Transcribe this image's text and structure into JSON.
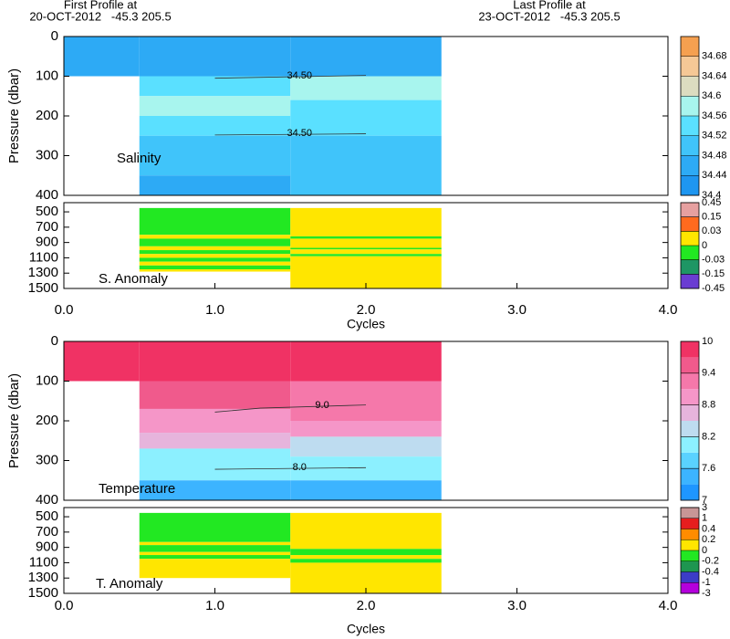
{
  "header": {
    "first_label": "First Profile at",
    "first_info": "20-OCT-2012   -45.3 205.5",
    "last_label": "Last Profile at",
    "last_info": "23-OCT-2012   -45.3 205.5"
  },
  "chart_data": [
    {
      "type": "heatmap",
      "label": "Salinity",
      "ylabel": "Pressure (dbar)",
      "xlim": [
        0,
        4
      ],
      "ylim": [
        0,
        400
      ],
      "y_inverted": true,
      "yticks": [
        0,
        100,
        200,
        300,
        400
      ],
      "profiles": [
        {
          "x": 0,
          "bins": [
            0,
            100
          ],
          "values": [
            34.46
          ]
        },
        {
          "x": 1,
          "bins": [
            0,
            100,
            150,
            200,
            250,
            350,
            400
          ],
          "values": [
            34.47,
            34.53,
            34.58,
            34.53,
            34.49,
            34.47
          ]
        },
        {
          "x": 2,
          "bins": [
            0,
            100,
            160,
            250,
            400
          ],
          "values": [
            34.47,
            34.57,
            34.53,
            34.49
          ]
        }
      ],
      "contours": [
        {
          "level": {
            "value": 34.5,
            "label": "34.50"
          },
          "x": [
            1,
            2
          ],
          "y": [
            105,
            98
          ]
        },
        {
          "level": {
            "value": 34.5,
            "label": "34.50"
          },
          "x": [
            1,
            2
          ],
          "y": [
            248,
            245
          ]
        }
      ],
      "colorbar": {
        "levels": [
          34.4,
          34.44,
          34.48,
          34.52,
          34.56,
          34.6,
          34.64,
          34.68,
          34.72
        ],
        "colors": [
          "#1e96f0",
          "#2daaf5",
          "#40c4fa",
          "#5ae0ff",
          "#a8f5ee",
          "#dcdcc0",
          "#f5c896",
          "#f5a050"
        ],
        "ticks": [
          34.4,
          34.44,
          34.48,
          34.52,
          34.56,
          34.6,
          34.64,
          34.68
        ]
      }
    },
    {
      "type": "heatmap",
      "label": "S. Anomaly",
      "xlabel": "Cycles",
      "xlim": [
        0,
        4
      ],
      "ylim": [
        380,
        1500
      ],
      "y_inverted": true,
      "yticks": [
        500,
        700,
        900,
        1100,
        1300,
        1500
      ],
      "xticks": [
        {
          "value": 0,
          "label": "0.0"
        },
        {
          "value": 1,
          "label": "1.0"
        },
        {
          "value": 2,
          "label": "2.0"
        },
        {
          "value": 3,
          "label": "3.0"
        },
        {
          "value": 4,
          "label": "4.0"
        }
      ],
      "profiles": [
        {
          "x": 1,
          "bins": [
            450,
            800,
            850,
            950,
            1000,
            1050,
            1100,
            1150,
            1200,
            1250,
            1280
          ],
          "values": [
            -0.01,
            0.01,
            -0.01,
            0.01,
            -0.01,
            0.01,
            -0.01,
            0.01,
            -0.01,
            0.01
          ]
        },
        {
          "x": 2,
          "bins": [
            450,
            820,
            850,
            970,
            990,
            1050,
            1080,
            1500
          ],
          "values": [
            0.01,
            -0.01,
            0.01,
            -0.01,
            0.01,
            -0.01,
            0.01
          ]
        }
      ],
      "colorbar": {
        "levels": [
          -0.45,
          -0.15,
          -0.03,
          0,
          0.03,
          0.15,
          0.45
        ],
        "colors": [
          "#6a3cd2",
          "#1e9664",
          "#22e822",
          "#ffe600",
          "#ff6a1e",
          "#e6a0a0"
        ],
        "ticks": [
          0.45,
          0.15,
          0.03,
          0,
          -0.03,
          -0.15,
          -0.45
        ]
      }
    },
    {
      "type": "heatmap",
      "label": "Temperature",
      "ylabel": "Pressure (dbar)",
      "xlim": [
        0,
        4
      ],
      "ylim": [
        0,
        400
      ],
      "y_inverted": true,
      "yticks": [
        0,
        100,
        200,
        300,
        400
      ],
      "profiles": [
        {
          "x": 0,
          "bins": [
            0,
            100
          ],
          "values": [
            9.9
          ]
        },
        {
          "x": 1,
          "bins": [
            0,
            100,
            170,
            230,
            270,
            350,
            400
          ],
          "values": [
            9.8,
            9.5,
            9.0,
            8.5,
            7.9,
            7.5
          ]
        },
        {
          "x": 2,
          "bins": [
            0,
            100,
            200,
            240,
            290,
            350,
            400
          ],
          "values": [
            9.8,
            9.3,
            8.9,
            8.4,
            7.9,
            7.5
          ]
        }
      ],
      "contours": [
        {
          "level": {
            "value": 9,
            "label": "9.0"
          },
          "x": [
            1,
            1.3,
            2
          ],
          "y": [
            178,
            168,
            160
          ]
        },
        {
          "level": {
            "value": 8,
            "label": "8.0"
          },
          "x": [
            1,
            2
          ],
          "y": [
            322,
            318
          ]
        }
      ],
      "colorbar": {
        "levels": [
          7,
          7.3,
          7.6,
          7.9,
          8.2,
          8.5,
          8.8,
          9.1,
          9.4,
          9.7,
          10
        ],
        "colors": [
          "#1e96ff",
          "#3cb4ff",
          "#5ad2ff",
          "#8cf0ff",
          "#bedcf0",
          "#e6b4dc",
          "#f596c8",
          "#f578aa",
          "#f05a8c",
          "#f03264"
        ],
        "ticks": [
          7,
          7.6,
          8.2,
          8.8,
          9.4,
          10
        ]
      }
    },
    {
      "type": "heatmap",
      "label": "T. Anomaly",
      "xlabel": "Cycles",
      "xlim": [
        0,
        4
      ],
      "ylim": [
        380,
        1500
      ],
      "y_inverted": true,
      "yticks": [
        500,
        700,
        900,
        1100,
        1300,
        1500
      ],
      "xticks": [
        {
          "value": 0,
          "label": "0.0"
        },
        {
          "value": 1,
          "label": "1.0"
        },
        {
          "value": 2,
          "label": "2.0"
        },
        {
          "value": 3,
          "label": "3.0"
        },
        {
          "value": 4,
          "label": "4.0"
        }
      ],
      "profiles": [
        {
          "x": 1,
          "bins": [
            450,
            830,
            870,
            960,
            1000,
            1050,
            1300
          ],
          "values": [
            -0.1,
            0.1,
            -0.1,
            0.1,
            -0.1,
            0.1
          ]
        },
        {
          "x": 2,
          "bins": [
            450,
            920,
            1000,
            1050,
            1100,
            1500
          ],
          "values": [
            0.1,
            -0.1,
            0.1,
            -0.1,
            0.1
          ]
        }
      ],
      "colorbar": {
        "levels": [
          -3,
          -1,
          -0.4,
          -0.2,
          0,
          0.2,
          0.4,
          1,
          3
        ],
        "colors": [
          "#b400dc",
          "#3c3cc8",
          "#1e9650",
          "#22e822",
          "#ffe600",
          "#ff8c00",
          "#e61e1e",
          "#c89696"
        ],
        "ticks": [
          3,
          1,
          0.4,
          0.2,
          0,
          -0.2,
          -0.4,
          -1,
          -3
        ]
      }
    }
  ]
}
